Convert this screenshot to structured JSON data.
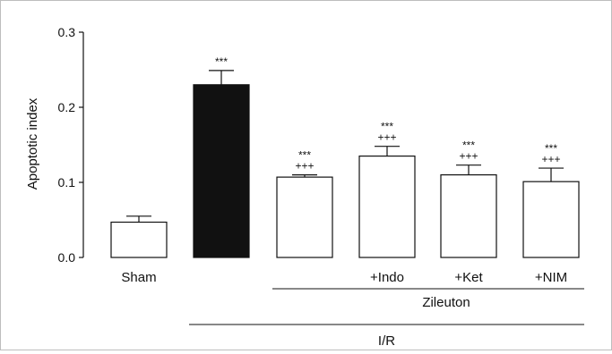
{
  "chart_data": {
    "type": "bar",
    "ylabel": "Apoptotic index",
    "ylim": [
      0,
      0.3
    ],
    "yticks": [
      "0.0",
      "0.1",
      "0.2",
      "0.3"
    ],
    "categories": [
      "Sham",
      "",
      "",
      "+Indo",
      "+Ket",
      "+NIM"
    ],
    "values": [
      0.047,
      0.23,
      0.107,
      0.135,
      0.11,
      0.101
    ],
    "errors": [
      0.008,
      0.019,
      0.003,
      0.013,
      0.013,
      0.018
    ],
    "fills": [
      "#ffffff",
      "#111111",
      "#ffffff",
      "#ffffff",
      "#ffffff",
      "#ffffff"
    ],
    "annotations": [
      [],
      [
        "***"
      ],
      [
        "***",
        "+++"
      ],
      [
        "***",
        "+++"
      ],
      [
        "***",
        "+++"
      ],
      [
        "***",
        "+++"
      ]
    ],
    "groups": [
      {
        "label": "Zileuton",
        "from": 2,
        "to": 5
      },
      {
        "label": "I/R",
        "from": 1,
        "to": 5
      }
    ],
    "grid": false,
    "legend": "none"
  }
}
